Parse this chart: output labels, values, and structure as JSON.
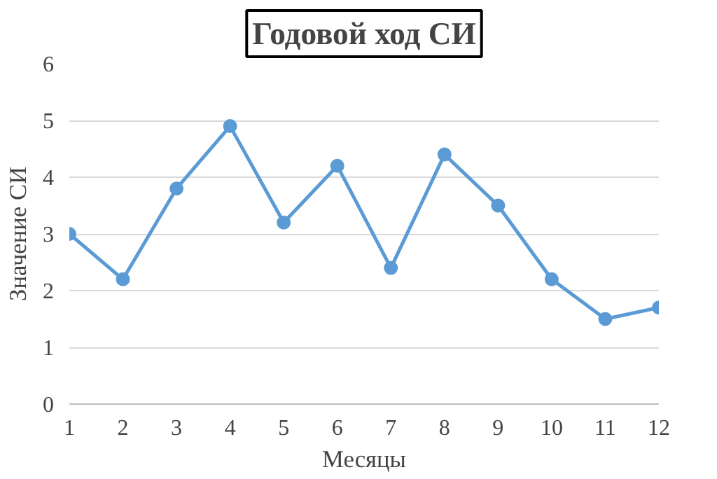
{
  "chart_data": {
    "type": "line",
    "title": "Годовой ход СИ",
    "xlabel": "Месяцы",
    "ylabel": "Значение СИ",
    "x": [
      1,
      2,
      3,
      4,
      5,
      6,
      7,
      8,
      9,
      10,
      11,
      12
    ],
    "series": [
      {
        "color": "#5b9bd5",
        "values": [
          3.0,
          2.2,
          3.8,
          4.9,
          3.2,
          4.2,
          2.4,
          4.4,
          3.5,
          2.2,
          1.5,
          1.7
        ]
      }
    ],
    "xlim": [
      1,
      12
    ],
    "xticks": [
      1,
      2,
      3,
      4,
      5,
      6,
      7,
      8,
      9,
      10,
      11,
      12
    ],
    "ylim": [
      0,
      6
    ],
    "yticks": [
      0,
      1,
      2,
      3,
      4,
      5,
      6
    ],
    "grid": "y",
    "marker": "circle",
    "line_style": "solid"
  }
}
